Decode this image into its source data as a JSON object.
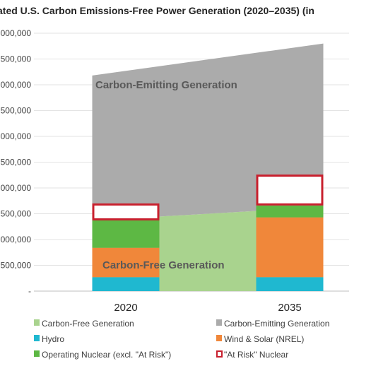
{
  "chart_data": {
    "type": "bar",
    "title": "ated U.S. Carbon Emissions-Free Power Generation (2020–2035) (in",
    "categories": [
      "2020",
      "2035"
    ],
    "y_tick_labels": [
      "-",
      "500,000",
      "000,000",
      "500,000",
      "000,000",
      "500,000",
      "000,000",
      "500,000",
      "000,000",
      "500,000",
      "000,000"
    ],
    "ylim": [
      0,
      5000000
    ],
    "grid": true,
    "legend_position": "bottom",
    "series": [
      {
        "name": "Hydro",
        "color": "#1FB8D0",
        "values": [
          270000,
          270000
        ]
      },
      {
        "name": "Wind & Solar (NREL)",
        "color": "#F0873A",
        "values": [
          570000,
          1160000
        ]
      },
      {
        "name": "Operating Nuclear (excl. \"At Risk\")",
        "color": "#5DB844",
        "values": [
          530000,
          230000
        ]
      },
      {
        "name": "\"At Risk\" Nuclear",
        "color": "#C8202E",
        "values": [
          330000,
          600000
        ]
      }
    ],
    "area_series": [
      {
        "name": "Carbon-Free Generation",
        "color": "#A9D38E",
        "values": [
          1370000,
          1630000
        ]
      },
      {
        "name": "Carbon-Emitting Generation",
        "color": "#ABABAB",
        "values": [
          2810000,
          3170000
        ]
      }
    ],
    "annotations": [
      {
        "text": "Carbon-Emitting Generation",
        "color": "#595959"
      },
      {
        "text": "Carbon-Free Generation",
        "color": "#595959"
      }
    ],
    "legend": [
      {
        "label": "Carbon-Free Generation",
        "marker": "square",
        "color": "#A9D38E"
      },
      {
        "label": "Carbon-Emitting Generation",
        "marker": "square",
        "color": "#ABABAB"
      },
      {
        "label": "Hydro",
        "marker": "square",
        "color": "#1FB8D0"
      },
      {
        "label": "Wind & Solar (NREL)",
        "marker": "square",
        "color": "#F0873A"
      },
      {
        "label": "Operating Nuclear (excl. \"At Risk\")",
        "marker": "square",
        "color": "#5DB844"
      },
      {
        "label": "\"At Risk\" Nuclear",
        "marker": "outline",
        "color": "#C8202E"
      }
    ]
  }
}
